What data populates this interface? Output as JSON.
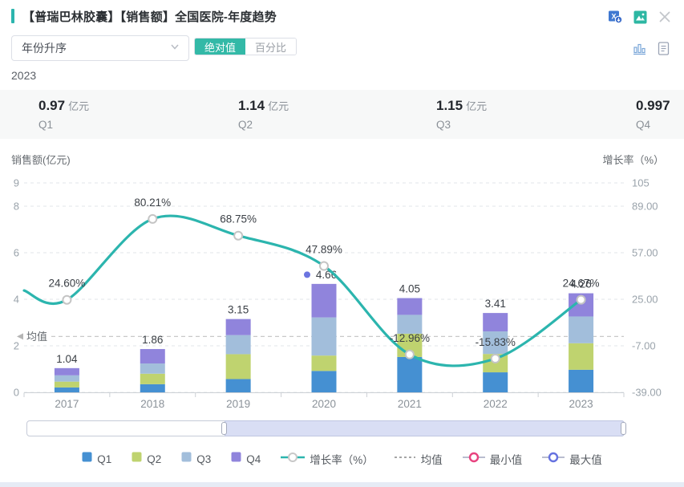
{
  "header": {
    "title": "【普瑞巴林胶囊】【销售额】全国医院-年度趋势",
    "accent_color": "#2cb5ae",
    "icons_row1": [
      "excel-download-icon",
      "export-image-icon",
      "close-icon"
    ],
    "icons_row2": [
      "bar-chart-icon",
      "report-icon"
    ]
  },
  "toolbar": {
    "sort_select_value": "年份升序",
    "view_toggle": {
      "options": [
        "绝对值",
        "百分比"
      ],
      "active": "绝对值",
      "active_color": "#33b9a7"
    }
  },
  "period_label": "2023",
  "stats": {
    "items": [
      {
        "value": "0.97",
        "unit": "亿元",
        "label": "Q1"
      },
      {
        "value": "1.14",
        "unit": "亿元",
        "label": "Q2"
      },
      {
        "value": "1.15",
        "unit": "亿元",
        "label": "Q3"
      },
      {
        "value": "0.997",
        "unit": "",
        "label": "Q4"
      }
    ]
  },
  "chart_data": {
    "type": "bar",
    "subtype": "stacked-bar-with-line",
    "categories": [
      "2017",
      "2018",
      "2019",
      "2020",
      "2021",
      "2022",
      "2023"
    ],
    "series": [
      {
        "name": "Q1",
        "color": "#4590d2",
        "values": [
          0.21,
          0.35,
          0.57,
          0.92,
          1.52,
          0.86,
          0.97
        ]
      },
      {
        "name": "Q2",
        "color": "#bfd36f",
        "values": [
          0.25,
          0.45,
          1.07,
          0.66,
          1.0,
          0.79,
          1.14
        ]
      },
      {
        "name": "Q3",
        "color": "#a2bedb",
        "values": [
          0.27,
          0.44,
          0.82,
          1.64,
          0.81,
          0.97,
          1.15
        ]
      },
      {
        "name": "Q4",
        "color": "#9084dc",
        "values": [
          0.31,
          0.62,
          0.69,
          1.44,
          0.72,
          0.79,
          0.997
        ]
      }
    ],
    "bar_totals": [
      1.04,
      1.86,
      3.15,
      4.66,
      4.05,
      3.41,
      4.26
    ],
    "bar_total_labels": [
      "1.04",
      "1.86",
      "3.15",
      "4.66",
      "4.05",
      "3.41",
      "4.26"
    ],
    "line_series": {
      "name": "增长率（%）",
      "color": "#2cb5ae",
      "values": [
        24.6,
        80.21,
        68.75,
        47.89,
        -12.96,
        -15.83,
        24.67
      ],
      "labels": [
        "24.60%",
        "80.21%",
        "68.75%",
        "47.89%",
        "-12.96%",
        "-15.83%",
        "24.67%"
      ],
      "edge_entry_value": 31,
      "point_fill": "#ffffff",
      "point_stroke": "#c4c4c4"
    },
    "left_axis": {
      "title": "销售额(亿元)",
      "tick_labels": [
        "9",
        "8",
        "6",
        "4",
        "2",
        "0"
      ],
      "tick_values": [
        9,
        8,
        6,
        4,
        2,
        0
      ],
      "max": 9,
      "min": 0
    },
    "right_axis": {
      "title": "增长率（%）",
      "tick_labels": [
        "105",
        "89.00",
        "57.00",
        "25.00",
        "-7.00",
        "-39.00"
      ],
      "tick_values": [
        105,
        89,
        57,
        25,
        -7,
        -39
      ],
      "max": 105,
      "min": -39
    },
    "mean_line": {
      "label": "均值",
      "value": 2.4,
      "color": "#c9c9c9"
    },
    "max_marker": {
      "category_index": 3,
      "color": "#6b74e0"
    },
    "grid": {
      "style": "dashed",
      "color": "#e0e5e9"
    },
    "axis_text_color": "#9aa3ab",
    "label_text_color": "#3a3f45"
  },
  "zoom_slider": {
    "selected_start_pct": 33,
    "selected_end_pct": 100
  },
  "legend": {
    "items": [
      {
        "marker": "square",
        "color": "#4590d2",
        "label": "Q1"
      },
      {
        "marker": "square",
        "color": "#bfd36f",
        "label": "Q2"
      },
      {
        "marker": "square",
        "color": "#a2bedb",
        "label": "Q3"
      },
      {
        "marker": "square",
        "color": "#9084dc",
        "label": "Q4"
      },
      {
        "marker": "line-dot",
        "color": "#2cb5ae",
        "label": "增长率（%）"
      },
      {
        "marker": "dash",
        "color": "#a6a6a6",
        "label": "均值"
      },
      {
        "marker": "ring",
        "color": "#e8437f",
        "label": "最小值"
      },
      {
        "marker": "ring",
        "color": "#6672e0",
        "label": "最大值"
      }
    ]
  }
}
